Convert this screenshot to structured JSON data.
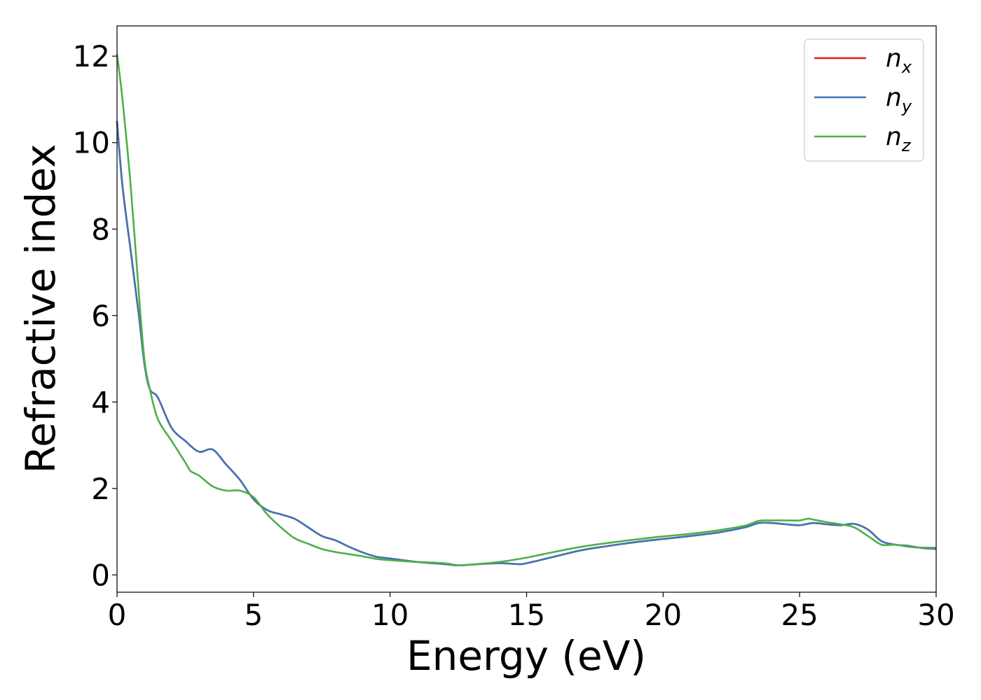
{
  "chart_data": {
    "type": "line",
    "xlabel": "Energy (eV)",
    "ylabel": "Refractive index",
    "xlim": [
      0,
      30
    ],
    "ylim": [
      -0.4,
      12.7
    ],
    "xticks": [
      0,
      5,
      10,
      15,
      20,
      25,
      30
    ],
    "yticks": [
      0,
      2,
      4,
      6,
      8,
      10,
      12
    ],
    "grid": false,
    "legend_position": "top-right",
    "series": [
      {
        "name": "n",
        "subscript": "x",
        "color": "#e41a1c",
        "x": [
          0,
          0.2,
          0.5,
          0.8,
          1.0,
          1.2,
          1.5,
          2.0,
          2.5,
          3.0,
          3.5,
          4.0,
          4.5,
          5.0,
          5.5,
          6.0,
          6.5,
          7.0,
          7.5,
          8.0,
          8.5,
          9.0,
          9.5,
          10.0,
          11.0,
          12.0,
          12.5,
          13.0,
          14.0,
          14.7,
          15.0,
          16.0,
          17.0,
          18.0,
          19.0,
          20.0,
          21.0,
          22.0,
          23.0,
          23.5,
          24.0,
          24.5,
          25.0,
          25.5,
          26.0,
          26.5,
          27.0,
          27.5,
          28.0,
          28.5,
          29.0,
          29.5,
          30.0
        ],
        "values": [
          10.5,
          9.0,
          7.5,
          6.0,
          4.9,
          4.3,
          4.1,
          3.4,
          3.1,
          2.85,
          2.9,
          2.55,
          2.2,
          1.75,
          1.5,
          1.4,
          1.3,
          1.1,
          0.9,
          0.8,
          0.65,
          0.52,
          0.42,
          0.38,
          0.3,
          0.25,
          0.22,
          0.24,
          0.27,
          0.25,
          0.27,
          0.42,
          0.57,
          0.67,
          0.76,
          0.83,
          0.9,
          0.98,
          1.1,
          1.2,
          1.2,
          1.17,
          1.15,
          1.2,
          1.17,
          1.15,
          1.18,
          1.05,
          0.78,
          0.7,
          0.67,
          0.62,
          0.6
        ]
      },
      {
        "name": "n",
        "subscript": "y",
        "color": "#3f75b6",
        "x": [
          0,
          0.2,
          0.5,
          0.8,
          1.0,
          1.2,
          1.5,
          2.0,
          2.5,
          3.0,
          3.5,
          4.0,
          4.5,
          5.0,
          5.5,
          6.0,
          6.5,
          7.0,
          7.5,
          8.0,
          8.5,
          9.0,
          9.5,
          10.0,
          11.0,
          12.0,
          12.5,
          13.0,
          14.0,
          14.7,
          15.0,
          16.0,
          17.0,
          18.0,
          19.0,
          20.0,
          21.0,
          22.0,
          23.0,
          23.5,
          24.0,
          24.5,
          25.0,
          25.5,
          26.0,
          26.5,
          27.0,
          27.5,
          28.0,
          28.5,
          29.0,
          29.5,
          30.0
        ],
        "values": [
          10.5,
          9.0,
          7.5,
          6.0,
          4.9,
          4.3,
          4.1,
          3.4,
          3.1,
          2.85,
          2.9,
          2.55,
          2.2,
          1.75,
          1.5,
          1.4,
          1.3,
          1.1,
          0.9,
          0.8,
          0.65,
          0.52,
          0.42,
          0.38,
          0.3,
          0.25,
          0.22,
          0.24,
          0.27,
          0.25,
          0.27,
          0.42,
          0.57,
          0.67,
          0.76,
          0.83,
          0.9,
          0.98,
          1.1,
          1.2,
          1.2,
          1.17,
          1.15,
          1.2,
          1.17,
          1.15,
          1.18,
          1.05,
          0.78,
          0.7,
          0.67,
          0.62,
          0.6
        ]
      },
      {
        "name": "n",
        "subscript": "z",
        "color": "#4daf4a",
        "x": [
          0,
          0.2,
          0.5,
          0.8,
          1.0,
          1.2,
          1.5,
          2.0,
          2.5,
          2.7,
          3.0,
          3.5,
          4.0,
          4.5,
          5.0,
          5.5,
          6.0,
          6.5,
          7.0,
          7.5,
          8.0,
          8.5,
          9.0,
          9.5,
          10.0,
          11.0,
          12.0,
          12.5,
          13.0,
          14.0,
          15.0,
          16.0,
          17.0,
          18.0,
          19.0,
          20.0,
          21.0,
          22.0,
          23.0,
          23.5,
          24.0,
          24.5,
          25.0,
          25.3,
          25.5,
          26.0,
          26.5,
          27.0,
          27.5,
          28.0,
          28.5,
          29.0,
          29.5,
          30.0
        ],
        "values": [
          12.05,
          11.0,
          9.0,
          6.5,
          5.0,
          4.3,
          3.6,
          3.1,
          2.6,
          2.4,
          2.3,
          2.05,
          1.95,
          1.95,
          1.8,
          1.4,
          1.1,
          0.85,
          0.72,
          0.6,
          0.53,
          0.48,
          0.43,
          0.37,
          0.34,
          0.3,
          0.27,
          0.22,
          0.24,
          0.3,
          0.4,
          0.53,
          0.65,
          0.74,
          0.82,
          0.89,
          0.95,
          1.03,
          1.14,
          1.25,
          1.26,
          1.26,
          1.26,
          1.3,
          1.28,
          1.22,
          1.17,
          1.1,
          0.9,
          0.7,
          0.7,
          0.65,
          0.63,
          0.63
        ]
      }
    ]
  }
}
